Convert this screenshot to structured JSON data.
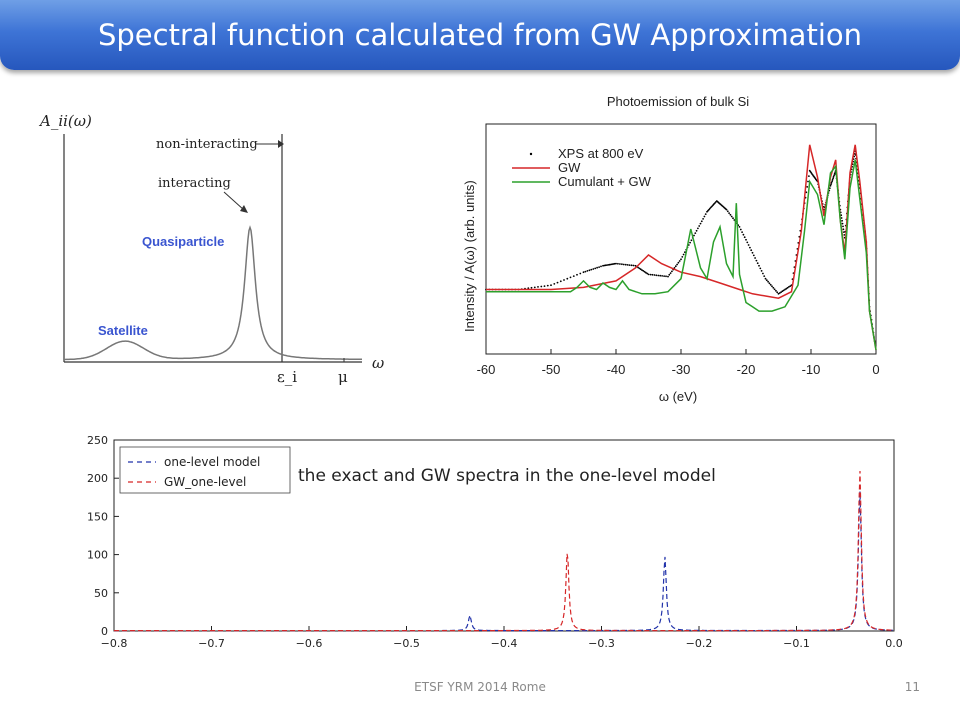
{
  "slide": {
    "title": "Spectral function calculated from GW Approximation",
    "footer": "ETSF YRM 2014 Rome",
    "page_number": "11",
    "caption": "the exact and GW spectra in the one-level model"
  },
  "chart_data": [
    {
      "type": "line",
      "title": "",
      "ylabel": "A_ii(ω)",
      "xlabel": "ω",
      "x_ticks": [
        "ε_i",
        "μ"
      ],
      "annotations": [
        "non-interacting",
        "interacting",
        "Quasiparticle",
        "Satellite"
      ],
      "series": [
        {
          "name": "interacting",
          "peaks": [
            {
              "label": "Satellite",
              "relative_height": 0.08
            },
            {
              "label": "Quasiparticle",
              "relative_height": 0.58
            }
          ]
        },
        {
          "name": "non-interacting",
          "shape": "delta function at ε_i"
        }
      ]
    },
    {
      "type": "line",
      "title": "Photoemission of bulk Si",
      "xlabel": "ω (eV)",
      "ylabel": "Intensity / A(ω) (arb. units)",
      "xlim": [
        -60,
        0
      ],
      "x_ticks": [
        -60,
        -50,
        -40,
        -30,
        -20,
        -10,
        0
      ],
      "legend": "top-left",
      "series": [
        {
          "name": "XPS at 800 eV",
          "color": "#000000",
          "style": "dots",
          "x": [
            -60,
            -55,
            -50,
            -45,
            -42,
            -40,
            -37,
            -35,
            -32,
            -30,
            -28,
            -26,
            -24.5,
            -23,
            -21,
            -19,
            -17,
            -15,
            -13,
            -11.5,
            -10.2,
            -9,
            -8,
            -7,
            -6.2,
            -5.5,
            -4.8,
            -4,
            -3.2,
            -2.5,
            -1.5,
            -1,
            0
          ],
          "y": [
            0.28,
            0.28,
            0.3,
            0.36,
            0.39,
            0.4,
            0.39,
            0.35,
            0.34,
            0.42,
            0.53,
            0.64,
            0.69,
            0.65,
            0.57,
            0.45,
            0.33,
            0.26,
            0.3,
            0.58,
            0.83,
            0.78,
            0.65,
            0.76,
            0.83,
            0.65,
            0.52,
            0.8,
            0.92,
            0.75,
            0.5,
            0.2,
            0.0
          ]
        },
        {
          "name": "GW",
          "color": "#d62728",
          "style": "solid",
          "x": [
            -60,
            -50,
            -45,
            -40,
            -37,
            -35,
            -33,
            -30,
            -27,
            -24,
            -21,
            -19,
            -17,
            -15,
            -13,
            -11.5,
            -10.2,
            -9,
            -8,
            -7,
            -6.2,
            -5.5,
            -4.8,
            -4,
            -3.2,
            -2.5,
            -1.5,
            -1,
            0
          ],
          "y": [
            0.28,
            0.28,
            0.29,
            0.32,
            0.38,
            0.44,
            0.4,
            0.36,
            0.34,
            0.31,
            0.28,
            0.26,
            0.25,
            0.24,
            0.27,
            0.55,
            0.95,
            0.8,
            0.62,
            0.8,
            0.88,
            0.6,
            0.45,
            0.82,
            0.95,
            0.78,
            0.5,
            0.18,
            0.0
          ]
        },
        {
          "name": "Cumulant + GW",
          "color": "#2ca02c",
          "style": "solid",
          "x": [
            -60,
            -50,
            -47,
            -46,
            -45,
            -44,
            -43,
            -42,
            -41,
            -40,
            -39,
            -38,
            -36,
            -34,
            -32,
            -30,
            -28.5,
            -27,
            -26,
            -25,
            -24,
            -23,
            -22,
            -21.5,
            -21,
            -20,
            -19,
            -18,
            -16,
            -14,
            -12,
            -11,
            -10.2,
            -9,
            -8,
            -7,
            -6.2,
            -5.5,
            -4.8,
            -4,
            -3.2,
            -2.5,
            -1.5,
            -1,
            0
          ],
          "y": [
            0.27,
            0.27,
            0.27,
            0.29,
            0.32,
            0.29,
            0.28,
            0.31,
            0.29,
            0.28,
            0.32,
            0.28,
            0.26,
            0.26,
            0.27,
            0.33,
            0.56,
            0.38,
            0.33,
            0.5,
            0.57,
            0.4,
            0.34,
            0.68,
            0.35,
            0.22,
            0.2,
            0.18,
            0.18,
            0.2,
            0.3,
            0.55,
            0.78,
            0.72,
            0.58,
            0.82,
            0.85,
            0.6,
            0.42,
            0.75,
            0.88,
            0.7,
            0.45,
            0.18,
            0.0
          ]
        }
      ]
    },
    {
      "type": "line",
      "title": "",
      "xlim": [
        -0.8,
        0.0
      ],
      "ylim": [
        0,
        250
      ],
      "x_ticks": [
        "−0.8",
        "−0.7",
        "−0.6",
        "−0.5",
        "−0.4",
        "−0.3",
        "−0.2",
        "−0.1",
        "0.0"
      ],
      "y_ticks": [
        "0",
        "50",
        "100",
        "150",
        "200",
        "250"
      ],
      "legend": "top-left",
      "series": [
        {
          "name": "one-level model",
          "color": "#2233aa",
          "style": "dashed",
          "peaks": [
            {
              "x": -0.435,
              "y": 20
            },
            {
              "x": -0.235,
              "y": 97
            },
            {
              "x": -0.035,
              "y": 183
            }
          ]
        },
        {
          "name": "GW_one-level",
          "color": "#d62728",
          "style": "dashed",
          "peaks": [
            {
              "x": -0.335,
              "y": 105
            },
            {
              "x": -0.035,
              "y": 210
            }
          ]
        }
      ]
    }
  ]
}
